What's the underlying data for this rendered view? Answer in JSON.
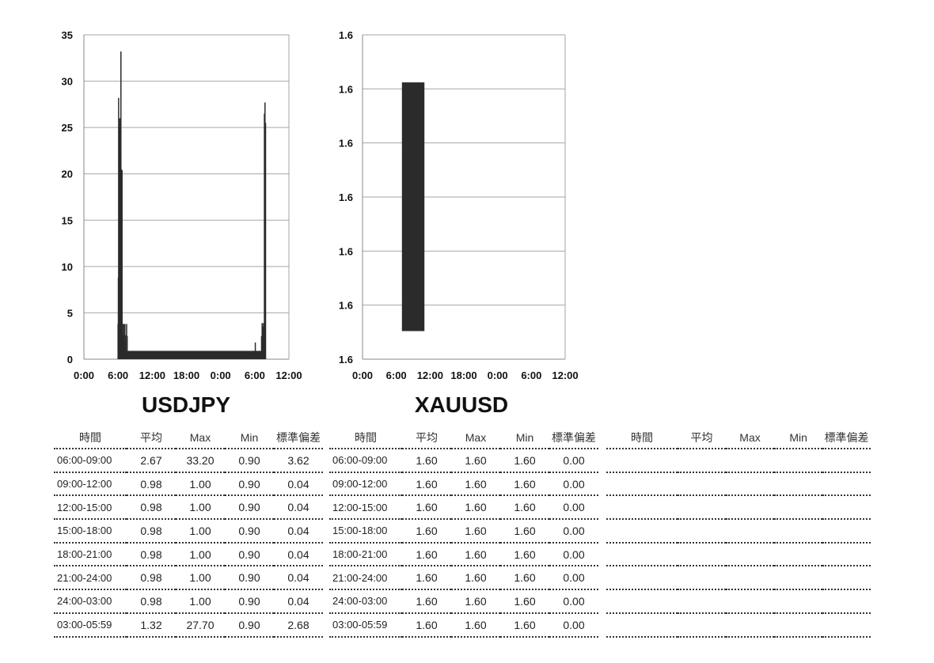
{
  "chart_data": [
    {
      "type": "bar",
      "title": "USDJPY",
      "x_ticks": [
        "0:00",
        "6:00",
        "12:00",
        "18:00",
        "0:00",
        "6:00",
        "12:00"
      ],
      "y_ticks": [
        "0",
        "5",
        "10",
        "15",
        "20",
        "25",
        "30",
        "35"
      ],
      "ylim": [
        0,
        35
      ],
      "x_range_hours": [
        0,
        36
      ],
      "grid": true,
      "series": [
        {
          "bars": [
            {
              "x": 6.0,
              "y": 3.8
            },
            {
              "x": 6.05,
              "y": 8.8
            },
            {
              "x": 6.1,
              "y": 28.2
            },
            {
              "x": 6.15,
              "y": 22.0
            },
            {
              "x": 6.2,
              "y": 25.0
            },
            {
              "x": 6.3,
              "y": 26.0
            },
            {
              "x": 6.35,
              "y": 20.0
            },
            {
              "x": 6.4,
              "y": 22.3
            },
            {
              "x": 6.45,
              "y": 13.0
            },
            {
              "x": 6.5,
              "y": 33.2
            },
            {
              "x": 6.55,
              "y": 20.5
            },
            {
              "x": 6.6,
              "y": 18.0
            },
            {
              "x": 6.7,
              "y": 20.4
            },
            {
              "x": 6.8,
              "y": 3.8
            },
            {
              "x": 6.9,
              "y": 2.6
            },
            {
              "x": 7.0,
              "y": 3.8
            },
            {
              "x": 7.1,
              "y": 1.8
            },
            {
              "x": 7.2,
              "y": 3.8
            },
            {
              "x": 7.3,
              "y": 2.6
            },
            {
              "x": 7.5,
              "y": 3.8
            },
            {
              "x": 7.6,
              "y": 2.5
            },
            {
              "x": 30.1,
              "y": 1.8
            },
            {
              "x": 31.2,
              "y": 2.5
            },
            {
              "x": 31.3,
              "y": 3.9
            },
            {
              "x": 31.45,
              "y": 3.5
            },
            {
              "x": 31.55,
              "y": 3.9
            },
            {
              "x": 31.7,
              "y": 26.5
            },
            {
              "x": 31.8,
              "y": 27.7
            },
            {
              "x": 31.9,
              "y": 25.5
            }
          ],
          "baseline": 0.9,
          "baseline_range": [
            6.8,
            31.9
          ]
        }
      ]
    },
    {
      "type": "bar",
      "title": "XAUUSD",
      "x_ticks": [
        "0:00",
        "6:00",
        "12:00",
        "18:00",
        "0:00",
        "6:00",
        "12:00"
      ],
      "y_ticks": [
        "1.6",
        "1.6",
        "1.6",
        "1.6",
        "1.6",
        "1.6",
        "1.6"
      ],
      "ylim": [
        0,
        6
      ],
      "x_range_hours": [
        0,
        36
      ],
      "grid": true,
      "series": [
        {
          "rect": {
            "x_start": 7.0,
            "x_end": 11.0,
            "y_low": 0.52,
            "y_high": 5.12
          }
        }
      ]
    }
  ],
  "tables": [
    {
      "headers": [
        "時間",
        "平均",
        "Max",
        "Min",
        "標準偏差"
      ],
      "rows": [
        [
          "06:00-09:00",
          "2.67",
          "33.20",
          "0.90",
          "3.62"
        ],
        [
          "09:00-12:00",
          "0.98",
          "1.00",
          "0.90",
          "0.04"
        ],
        [
          "12:00-15:00",
          "0.98",
          "1.00",
          "0.90",
          "0.04"
        ],
        [
          "15:00-18:00",
          "0.98",
          "1.00",
          "0.90",
          "0.04"
        ],
        [
          "18:00-21:00",
          "0.98",
          "1.00",
          "0.90",
          "0.04"
        ],
        [
          "21:00-24:00",
          "0.98",
          "1.00",
          "0.90",
          "0.04"
        ],
        [
          "24:00-03:00",
          "0.98",
          "1.00",
          "0.90",
          "0.04"
        ],
        [
          "03:00-05:59",
          "1.32",
          "27.70",
          "0.90",
          "2.68"
        ]
      ]
    },
    {
      "headers": [
        "時間",
        "平均",
        "Max",
        "Min",
        "標準偏差"
      ],
      "rows": [
        [
          "06:00-09:00",
          "1.60",
          "1.60",
          "1.60",
          "0.00"
        ],
        [
          "09:00-12:00",
          "1.60",
          "1.60",
          "1.60",
          "0.00"
        ],
        [
          "12:00-15:00",
          "1.60",
          "1.60",
          "1.60",
          "0.00"
        ],
        [
          "15:00-18:00",
          "1.60",
          "1.60",
          "1.60",
          "0.00"
        ],
        [
          "18:00-21:00",
          "1.60",
          "1.60",
          "1.60",
          "0.00"
        ],
        [
          "21:00-24:00",
          "1.60",
          "1.60",
          "1.60",
          "0.00"
        ],
        [
          "24:00-03:00",
          "1.60",
          "1.60",
          "1.60",
          "0.00"
        ],
        [
          "03:00-05:59",
          "1.60",
          "1.60",
          "1.60",
          "0.00"
        ]
      ]
    },
    {
      "headers": [
        "時間",
        "平均",
        "Max",
        "Min",
        "標準偏差"
      ],
      "rows": [
        [
          "",
          "",
          "",
          "",
          ""
        ],
        [
          "",
          "",
          "",
          "",
          ""
        ],
        [
          "",
          "",
          "",
          "",
          ""
        ],
        [
          "",
          "",
          "",
          "",
          ""
        ],
        [
          "",
          "",
          "",
          "",
          ""
        ],
        [
          "",
          "",
          "",
          "",
          ""
        ],
        [
          "",
          "",
          "",
          "",
          ""
        ],
        [
          "",
          "",
          "",
          "",
          ""
        ]
      ]
    }
  ],
  "colors": {
    "bar": "#2b2b2b",
    "grid": "#a6a6a6",
    "axis": "#888888"
  }
}
